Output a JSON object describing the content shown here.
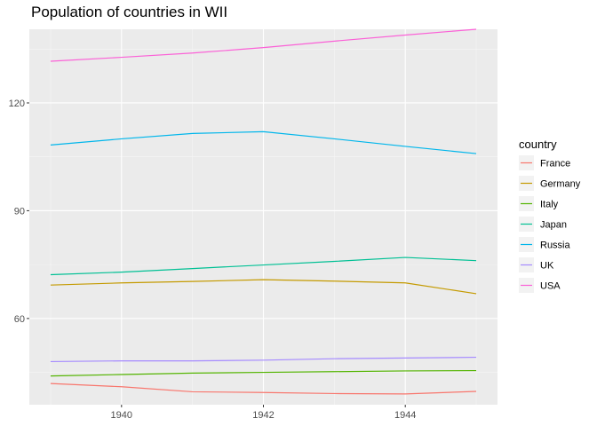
{
  "chart_data": {
    "type": "line",
    "title": "Population of countries in WII",
    "xlabel": "",
    "ylabel": "",
    "x": [
      1939,
      1940,
      1941,
      1942,
      1943,
      1944,
      1945
    ],
    "xlim": [
      1938.7,
      1945.3
    ],
    "ylim": [
      36,
      140.5
    ],
    "x_ticks": [
      1940,
      1942,
      1944
    ],
    "y_ticks": [
      60,
      90,
      120
    ],
    "grid": true,
    "legend_title": "country",
    "legend_position": "right",
    "series": [
      {
        "name": "France",
        "color": "#F8766D",
        "values": [
          41.9,
          41.0,
          39.6,
          39.4,
          39.1,
          39.0,
          39.7
        ]
      },
      {
        "name": "Germany",
        "color": "#C49A00",
        "values": [
          69.3,
          69.9,
          70.3,
          70.8,
          70.4,
          69.9,
          66.9
        ]
      },
      {
        "name": "Italy",
        "color": "#53B400",
        "values": [
          44.0,
          44.4,
          44.8,
          45.0,
          45.2,
          45.4,
          45.5
        ]
      },
      {
        "name": "Japan",
        "color": "#00C094",
        "values": [
          72.2,
          72.9,
          73.9,
          74.9,
          75.9,
          77.0,
          76.1
        ]
      },
      {
        "name": "Russia",
        "color": "#00B6EB",
        "values": [
          108.3,
          110.0,
          111.5,
          112.0,
          110.0,
          107.9,
          105.9
        ]
      },
      {
        "name": "UK",
        "color": "#A58AFF",
        "values": [
          48.0,
          48.2,
          48.2,
          48.4,
          48.8,
          49.0,
          49.2
        ]
      },
      {
        "name": "USA",
        "color": "#FB61D7",
        "values": [
          131.6,
          132.7,
          133.9,
          135.4,
          137.2,
          138.9,
          140.5
        ]
      }
    ]
  }
}
